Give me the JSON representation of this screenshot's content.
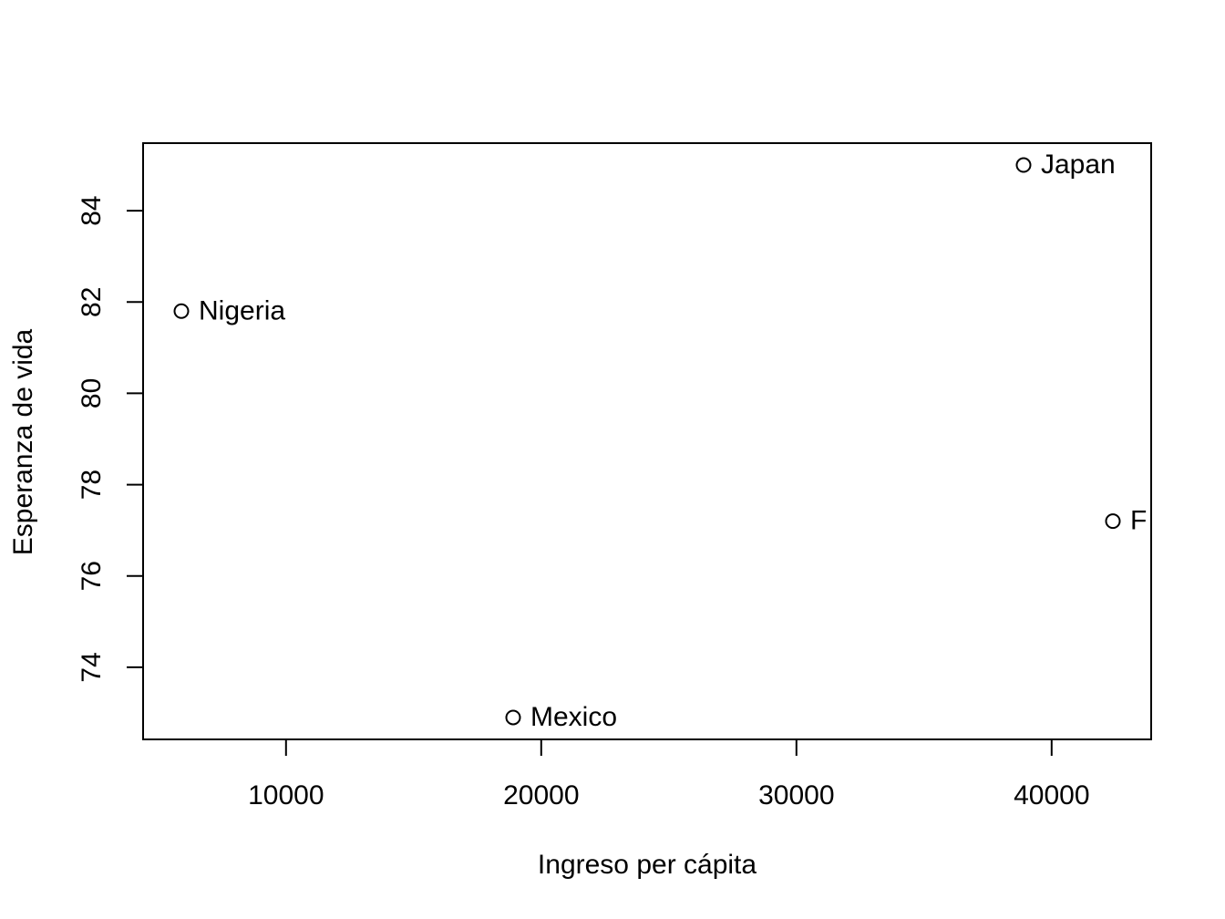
{
  "chart_data": {
    "type": "scatter",
    "title": "",
    "xlabel": "Ingreso per cápita",
    "ylabel": "Esperanza de vida",
    "xlim": [
      4400,
      43900
    ],
    "ylim": [
      72.42,
      85.48
    ],
    "x_ticks": [
      10000,
      20000,
      30000,
      40000
    ],
    "y_ticks": [
      74,
      76,
      78,
      80,
      82,
      84
    ],
    "x_tick_labels": [
      "10000",
      "20000",
      "30000",
      "40000"
    ],
    "y_tick_labels": [
      "74",
      "76",
      "78",
      "80",
      "82",
      "84"
    ],
    "grid": false,
    "legend": "none",
    "marker": "open-circle",
    "points": [
      {
        "label": "Nigeria",
        "x": 5900,
        "y": 81.8
      },
      {
        "label": "Mexico",
        "x": 18900,
        "y": 72.9
      },
      {
        "label": "Japan",
        "x": 38900,
        "y": 85.0
      },
      {
        "label": "F",
        "x": 42400,
        "y": 77.2
      }
    ]
  }
}
